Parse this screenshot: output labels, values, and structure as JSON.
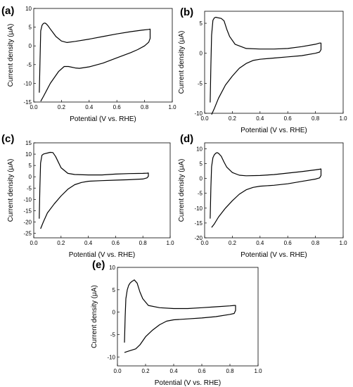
{
  "chart_data": [
    {
      "panel_label": "(a)",
      "type": "line",
      "xlabel": "Potential (V vs. RHE)",
      "ylabel": "Current density (μA)",
      "xlim": [
        0.0,
        1.0
      ],
      "ylim": [
        -15,
        10
      ],
      "xticks": [
        "0.0",
        "0.2",
        "0.4",
        "0.6",
        "0.8",
        "1.0"
      ],
      "yticks": [
        "-15",
        "-10",
        "-5",
        "0",
        "5",
        "10"
      ],
      "grid": false,
      "series": [
        {
          "x": [
            0.04,
            0.045,
            0.05,
            0.06,
            0.07,
            0.08,
            0.09,
            0.1,
            0.12,
            0.14,
            0.16,
            0.2,
            0.24,
            0.3,
            0.4,
            0.5,
            0.6,
            0.7,
            0.78,
            0.83,
            0.84,
            0.84,
            0.83,
            0.8,
            0.75,
            0.7,
            0.6,
            0.5,
            0.4,
            0.33,
            0.3,
            0.25,
            0.22,
            0.18,
            0.12,
            0.07,
            0.05
          ],
          "y": [
            -12.5,
            -4,
            4,
            5.5,
            6,
            6.1,
            5.9,
            5.5,
            4.5,
            3.5,
            2.5,
            1.3,
            0.9,
            1.2,
            1.8,
            2.5,
            3.2,
            3.8,
            4.2,
            4.4,
            4.5,
            2,
            1,
            0,
            -1,
            -1.8,
            -3.2,
            -4.6,
            -5.6,
            -6,
            -5.9,
            -5.5,
            -5.5,
            -6.8,
            -10,
            -13.5,
            -14.8
          ]
        }
      ]
    },
    {
      "panel_label": "(b)",
      "type": "line",
      "xlabel": "Potential (V vs. RHE)",
      "ylabel": "Current density (μA)",
      "xlim": [
        0.0,
        1.0
      ],
      "ylim": [
        -10,
        7
      ],
      "xticks": [
        "0.0",
        "0.2",
        "0.4",
        "0.6",
        "0.8",
        "1.0"
      ],
      "yticks": [
        "-10",
        "-5",
        "0",
        "5"
      ],
      "grid": false,
      "series": [
        {
          "x": [
            0.04,
            0.045,
            0.05,
            0.06,
            0.07,
            0.08,
            0.1,
            0.12,
            0.14,
            0.16,
            0.18,
            0.22,
            0.3,
            0.4,
            0.5,
            0.6,
            0.7,
            0.8,
            0.83,
            0.84,
            0.84,
            0.83,
            0.8,
            0.7,
            0.6,
            0.5,
            0.4,
            0.35,
            0.3,
            0.25,
            0.2,
            0.15,
            0.1,
            0.07,
            0.05
          ],
          "y": [
            -8.2,
            -2,
            3,
            5.5,
            5.9,
            6,
            5.9,
            5.8,
            5.4,
            4,
            2.8,
            1.5,
            0.8,
            0.7,
            0.7,
            0.8,
            1.1,
            1.5,
            1.7,
            1.7,
            0.6,
            0.2,
            0,
            -0.4,
            -0.6,
            -0.8,
            -1,
            -1.2,
            -1.7,
            -2.5,
            -3.8,
            -5.3,
            -7.5,
            -9.2,
            -10.2
          ]
        }
      ]
    },
    {
      "panel_label": "(c)",
      "type": "line",
      "xlabel": "Potential (V vs. RHE)",
      "ylabel": "Current density (μA)",
      "xlim": [
        0.0,
        1.0
      ],
      "ylim": [
        -27,
        15
      ],
      "xticks": [
        "0.0",
        "0.2",
        "0.4",
        "0.6",
        "0.8",
        "1.0"
      ],
      "yticks": [
        "-25",
        "-20",
        "-15",
        "-10",
        "-5",
        "0",
        "5",
        "10",
        "15"
      ],
      "grid": false,
      "series": [
        {
          "x": [
            0.04,
            0.045,
            0.05,
            0.06,
            0.07,
            0.08,
            0.1,
            0.12,
            0.14,
            0.16,
            0.18,
            0.2,
            0.25,
            0.3,
            0.4,
            0.5,
            0.6,
            0.7,
            0.8,
            0.83,
            0.84,
            0.84,
            0.83,
            0.8,
            0.7,
            0.6,
            0.5,
            0.4,
            0.35,
            0.3,
            0.25,
            0.2,
            0.15,
            0.1,
            0.07,
            0.05
          ],
          "y": [
            -18.5,
            -5,
            6,
            9.5,
            10,
            10.2,
            10.5,
            10.8,
            10.7,
            9,
            6.5,
            4,
            1.5,
            1,
            0.8,
            0.8,
            1.2,
            1.4,
            1.5,
            1.6,
            1.7,
            0.2,
            -0.5,
            -1,
            -1.3,
            -1.5,
            -1.7,
            -2,
            -2.5,
            -3.5,
            -5.5,
            -8.5,
            -12,
            -16,
            -20,
            -23
          ]
        }
      ]
    },
    {
      "panel_label": "(d)",
      "type": "line",
      "xlabel": "Potential (V vs. RHE)",
      "ylabel": "Current density (μA)",
      "xlim": [
        0.0,
        1.0
      ],
      "ylim": [
        -20,
        12
      ],
      "xticks": [
        "0.0",
        "0.2",
        "0.4",
        "0.6",
        "0.8",
        "1.0"
      ],
      "yticks": [
        "-20",
        "-15",
        "-10",
        "-5",
        "0",
        "5",
        "10"
      ],
      "grid": false,
      "series": [
        {
          "x": [
            0.04,
            0.045,
            0.05,
            0.06,
            0.07,
            0.08,
            0.09,
            0.1,
            0.12,
            0.14,
            0.16,
            0.2,
            0.25,
            0.3,
            0.4,
            0.5,
            0.6,
            0.7,
            0.8,
            0.83,
            0.84,
            0.84,
            0.83,
            0.8,
            0.7,
            0.6,
            0.5,
            0.4,
            0.35,
            0.3,
            0.25,
            0.2,
            0.15,
            0.1,
            0.07,
            0.05
          ],
          "y": [
            -13.5,
            -3,
            4,
            7,
            8,
            8.5,
            8.7,
            8.5,
            7.5,
            5.5,
            3.8,
            2,
            1.1,
            0.9,
            1,
            1.3,
            1.8,
            2.3,
            2.9,
            3.1,
            3.2,
            1,
            0.2,
            -0.2,
            -1,
            -1.8,
            -2.3,
            -2.6,
            -3,
            -3.8,
            -5.3,
            -7.5,
            -10,
            -13,
            -15.3,
            -16.5
          ]
        }
      ]
    },
    {
      "panel_label": "(e)",
      "type": "line",
      "xlabel": "Potential (V vs. RHE)",
      "ylabel": "Current density (μA)",
      "xlim": [
        0.0,
        1.0
      ],
      "ylim": [
        -12,
        10
      ],
      "xticks": [
        "0.0",
        "0.2",
        "0.4",
        "0.6",
        "0.8",
        "1.0"
      ],
      "yticks": [
        "-10",
        "-5",
        "0",
        "5",
        "10"
      ],
      "grid": false,
      "series": [
        {
          "x": [
            0.05,
            0.055,
            0.06,
            0.07,
            0.08,
            0.09,
            0.1,
            0.11,
            0.12,
            0.14,
            0.16,
            0.18,
            0.22,
            0.3,
            0.4,
            0.5,
            0.6,
            0.7,
            0.8,
            0.83,
            0.84,
            0.84,
            0.83,
            0.8,
            0.7,
            0.6,
            0.5,
            0.4,
            0.35,
            0.3,
            0.25,
            0.2,
            0.16,
            0.13,
            0.1,
            0.07,
            0.05
          ],
          "y": [
            -6.8,
            -1,
            3,
            5,
            6,
            6.5,
            6.8,
            7,
            7.2,
            6.5,
            4.5,
            3,
            1.5,
            1,
            0.8,
            0.8,
            1,
            1.2,
            1.4,
            1.5,
            1.5,
            0.4,
            -0.3,
            -0.5,
            -1,
            -1.3,
            -1.5,
            -1.7,
            -2,
            -2.8,
            -4,
            -5.5,
            -7.3,
            -8.2,
            -8.5,
            -8.8,
            -9
          ]
        }
      ]
    }
  ]
}
